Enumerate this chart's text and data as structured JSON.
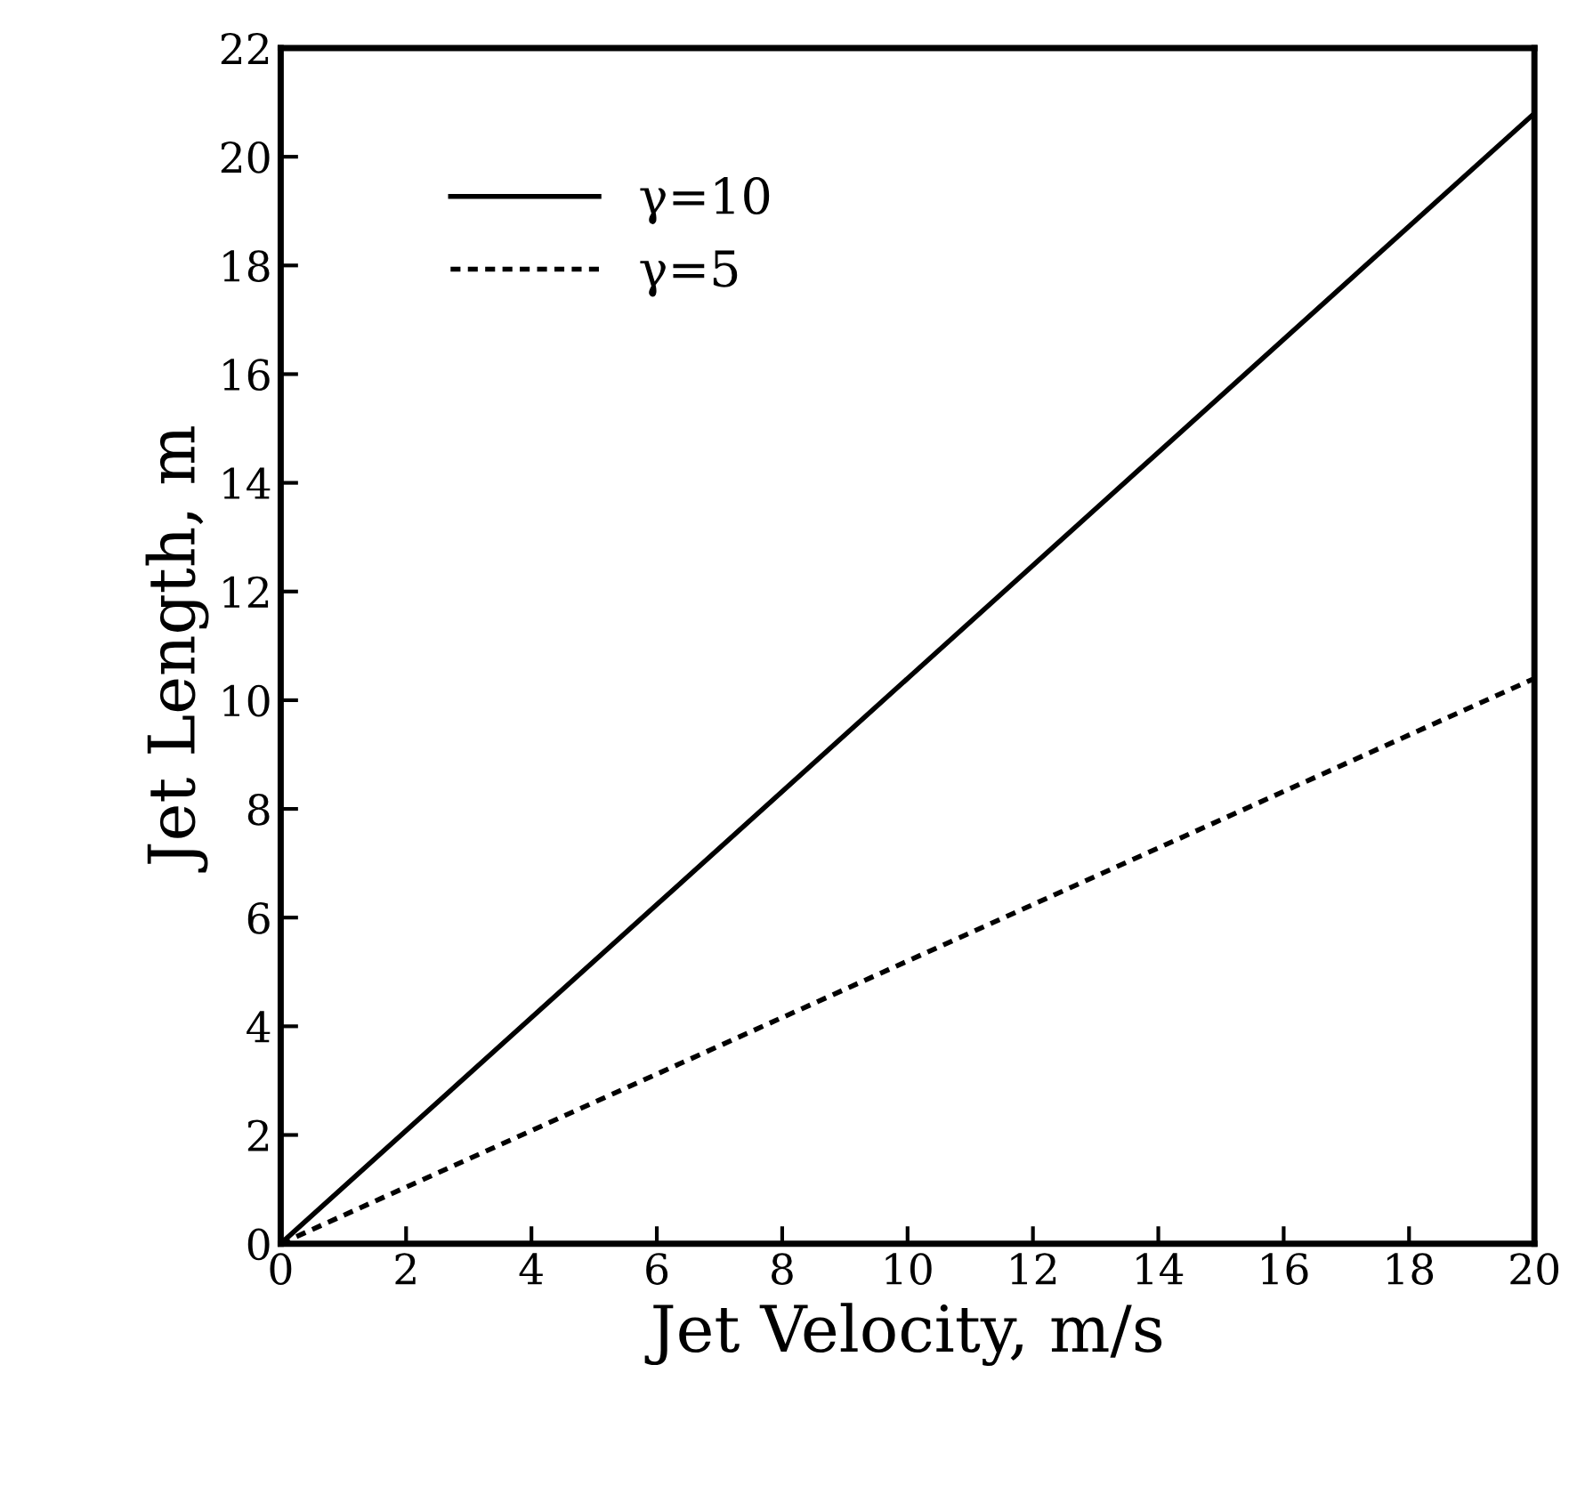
{
  "chart_data": {
    "type": "line",
    "xlabel": "Jet Velocity, m/s",
    "ylabel": "Jet Length, m",
    "x": [
      0,
      20
    ],
    "series": [
      {
        "name": "γ=10",
        "color": "#000000",
        "values": [
          0,
          20.8
        ],
        "line_style": "solid"
      },
      {
        "name": "γ=5",
        "color": "#000000",
        "values": [
          0,
          10.4
        ],
        "line_style": "dotted"
      }
    ],
    "xlim": [
      0,
      20
    ],
    "xticks": [
      0,
      2,
      4,
      6,
      8,
      10,
      12,
      14,
      16,
      18,
      20
    ],
    "ylim": [
      0,
      22
    ],
    "yticks": [
      0,
      2,
      4,
      6,
      8,
      10,
      12,
      14,
      16,
      18,
      20,
      22
    ],
    "grid": false,
    "legend": "top left",
    "marker": "none"
  }
}
